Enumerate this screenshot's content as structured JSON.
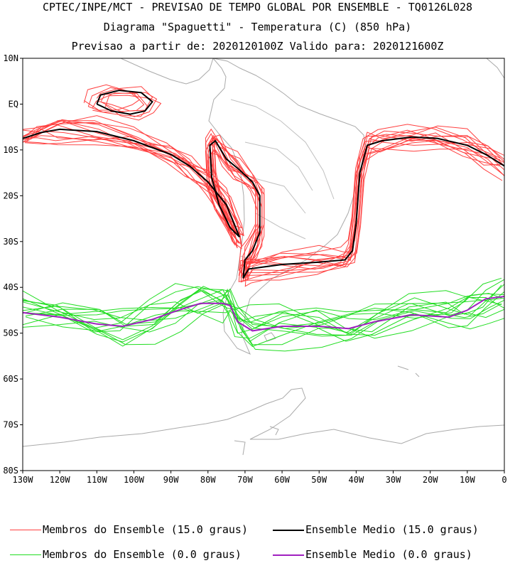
{
  "header": {
    "line1": "CPTEC/INPE/MCT - PREVISAO DE TEMPO GLOBAL POR ENSEMBLE - TQ0126L028",
    "line2": "Diagrama \"Spaguetti\" - Temperatura (C) (850 hPa)",
    "line3": "Previsao a partir de: 2020120100Z  Valido para: 2020121600Z"
  },
  "axes": {
    "lat_labels": [
      "10N",
      "EQ",
      "10S",
      "20S",
      "30S",
      "40S",
      "50S",
      "60S",
      "70S",
      "80S"
    ],
    "lat_values": [
      10,
      0,
      -10,
      -20,
      -30,
      -40,
      -50,
      -60,
      -70,
      -80
    ],
    "lon_labels": [
      "130W",
      "120W",
      "110W",
      "100W",
      "90W",
      "80W",
      "70W",
      "60W",
      "50W",
      "40W",
      "30W",
      "20W",
      "10W",
      "0"
    ],
    "lon_values": [
      -130,
      -120,
      -110,
      -100,
      -90,
      -80,
      -70,
      -60,
      -50,
      -40,
      -30,
      -20,
      -10,
      0
    ],
    "lat_range": [
      -80,
      10
    ],
    "lon_range": [
      -130,
      0
    ]
  },
  "colors": {
    "members_15": "#ff4040",
    "mean_15": "#000000",
    "members_0": "#22dd22",
    "mean_0": "#a020c0",
    "coast": "#aaaaaa"
  },
  "legend": {
    "members_15": "Membros do Ensemble (15.0 graus)",
    "mean_15": "Ensemble Medio (15.0 graus)",
    "members_0": "Membros do Ensemble (0.0 graus)",
    "mean_0": "Ensemble Medio (0.0 graus)"
  },
  "map_data": {
    "mean_15_path": [
      [
        -130,
        -7.5
      ],
      [
        -125,
        -6.2
      ],
      [
        -120,
        -5.5
      ],
      [
        -110,
        -6
      ],
      [
        -100,
        -8
      ],
      [
        -90,
        -11
      ],
      [
        -85,
        -13.5
      ],
      [
        -80,
        -17
      ],
      [
        -75,
        -22
      ],
      [
        -72,
        -28
      ],
      [
        -71.5,
        -29
      ],
      [
        -74,
        -27
      ],
      [
        -77,
        -22
      ],
      [
        -79,
        -16
      ],
      [
        -79.5,
        -9
      ],
      [
        -78,
        -8
      ],
      [
        -75,
        -12
      ],
      [
        -72,
        -14
      ],
      [
        -68,
        -17
      ],
      [
        -66,
        -20
      ],
      [
        -66,
        -28
      ],
      [
        -68,
        -32
      ],
      [
        -70,
        -34
      ],
      [
        -70.5,
        -38
      ],
      [
        -69,
        -36
      ],
      [
        -60,
        -35
      ],
      [
        -50,
        -34.5
      ],
      [
        -43,
        -34
      ],
      [
        -41,
        -32
      ],
      [
        -40,
        -26
      ],
      [
        -39,
        -15
      ],
      [
        -37,
        -9
      ],
      [
        -33,
        -8
      ],
      [
        -25,
        -7.2
      ],
      [
        -18,
        -7.5
      ],
      [
        -10,
        -9
      ],
      [
        -5,
        -11
      ],
      [
        0,
        -13.5
      ]
    ],
    "mean_15_loop1": [
      [
        -110,
        0
      ],
      [
        -106,
        -1.5
      ],
      [
        -101,
        -2.2
      ],
      [
        -97,
        -1.5
      ],
      [
        -95,
        0.5
      ],
      [
        -98,
        2.5
      ],
      [
        -104,
        3
      ],
      [
        -109,
        2
      ],
      [
        -110,
        0
      ]
    ],
    "mean_0_path": [
      [
        -130,
        -45.5
      ],
      [
        -120,
        -46.5
      ],
      [
        -110,
        -48
      ],
      [
        -103,
        -48.5
      ],
      [
        -95,
        -47
      ],
      [
        -88,
        -45
      ],
      [
        -82,
        -43.5
      ],
      [
        -76,
        -43.5
      ],
      [
        -74,
        -44
      ],
      [
        -72,
        -47.5
      ],
      [
        -68,
        -49.5
      ],
      [
        -60,
        -48.5
      ],
      [
        -50,
        -48.5
      ],
      [
        -42,
        -49
      ],
      [
        -35,
        -47.5
      ],
      [
        -25,
        -46
      ],
      [
        -15,
        -46.5
      ],
      [
        -10,
        -45
      ],
      [
        -5,
        -42.5
      ],
      [
        0,
        -42
      ]
    ]
  }
}
